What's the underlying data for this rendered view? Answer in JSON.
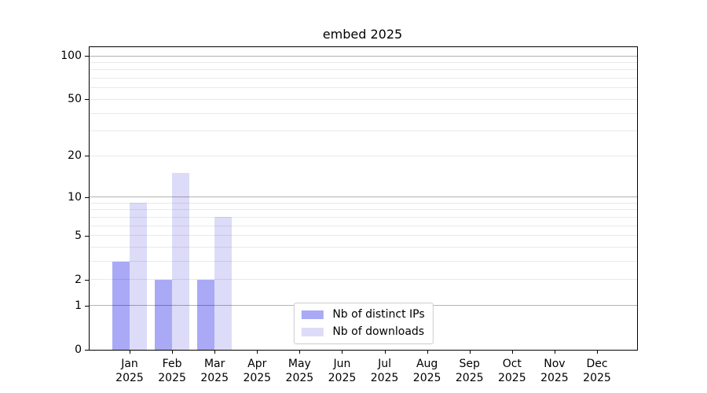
{
  "title": "embed 2025",
  "chart_data": {
    "type": "bar",
    "title": "embed 2025",
    "categories": [
      "Jan 2025",
      "Feb 2025",
      "Mar 2025",
      "Apr 2025",
      "May 2025",
      "Jun 2025",
      "Jul 2025",
      "Aug 2025",
      "Sep 2025",
      "Oct 2025",
      "Nov 2025",
      "Dec 2025"
    ],
    "months": [
      "Jan",
      "Feb",
      "Mar",
      "Apr",
      "May",
      "Jun",
      "Jul",
      "Aug",
      "Sep",
      "Oct",
      "Nov",
      "Dec"
    ],
    "year": "2025",
    "series": [
      {
        "name": "Nb of distinct IPs",
        "values": [
          3,
          2,
          2,
          0,
          0,
          0,
          0,
          0,
          0,
          0,
          0,
          0
        ],
        "color": "#a9a9f6"
      },
      {
        "name": "Nb of downloads",
        "values": [
          9,
          15,
          7,
          0,
          0,
          0,
          0,
          0,
          0,
          0,
          0,
          0
        ],
        "color": "#dcdcf9"
      }
    ],
    "xlabel": "",
    "ylabel": "",
    "yscale": "log1p",
    "ylim": [
      0,
      114
    ],
    "yticks": [
      0,
      1,
      2,
      5,
      10,
      20,
      50,
      100
    ],
    "grid": {
      "major": [
        1,
        10,
        100
      ],
      "minor": [
        2,
        3,
        4,
        5,
        6,
        7,
        8,
        9,
        20,
        30,
        40,
        50,
        60,
        70,
        80,
        90
      ]
    },
    "legend_position": "lower center",
    "grid_on": true
  },
  "colors": {
    "ips_bar": "#a9a9f6",
    "downloads_bar": "#dcdcf9",
    "axis": "#000000",
    "text": "#000000",
    "background": "#ffffff",
    "legend_border": "#cccccc",
    "grid_major_hex": "#b3b3b3",
    "grid_minor_hex": "#ebebeb",
    "grid_major_rgba": "rgba(0,0,0,0.30)",
    "grid_minor_rgba": "rgba(0,0,0,0.085)"
  }
}
